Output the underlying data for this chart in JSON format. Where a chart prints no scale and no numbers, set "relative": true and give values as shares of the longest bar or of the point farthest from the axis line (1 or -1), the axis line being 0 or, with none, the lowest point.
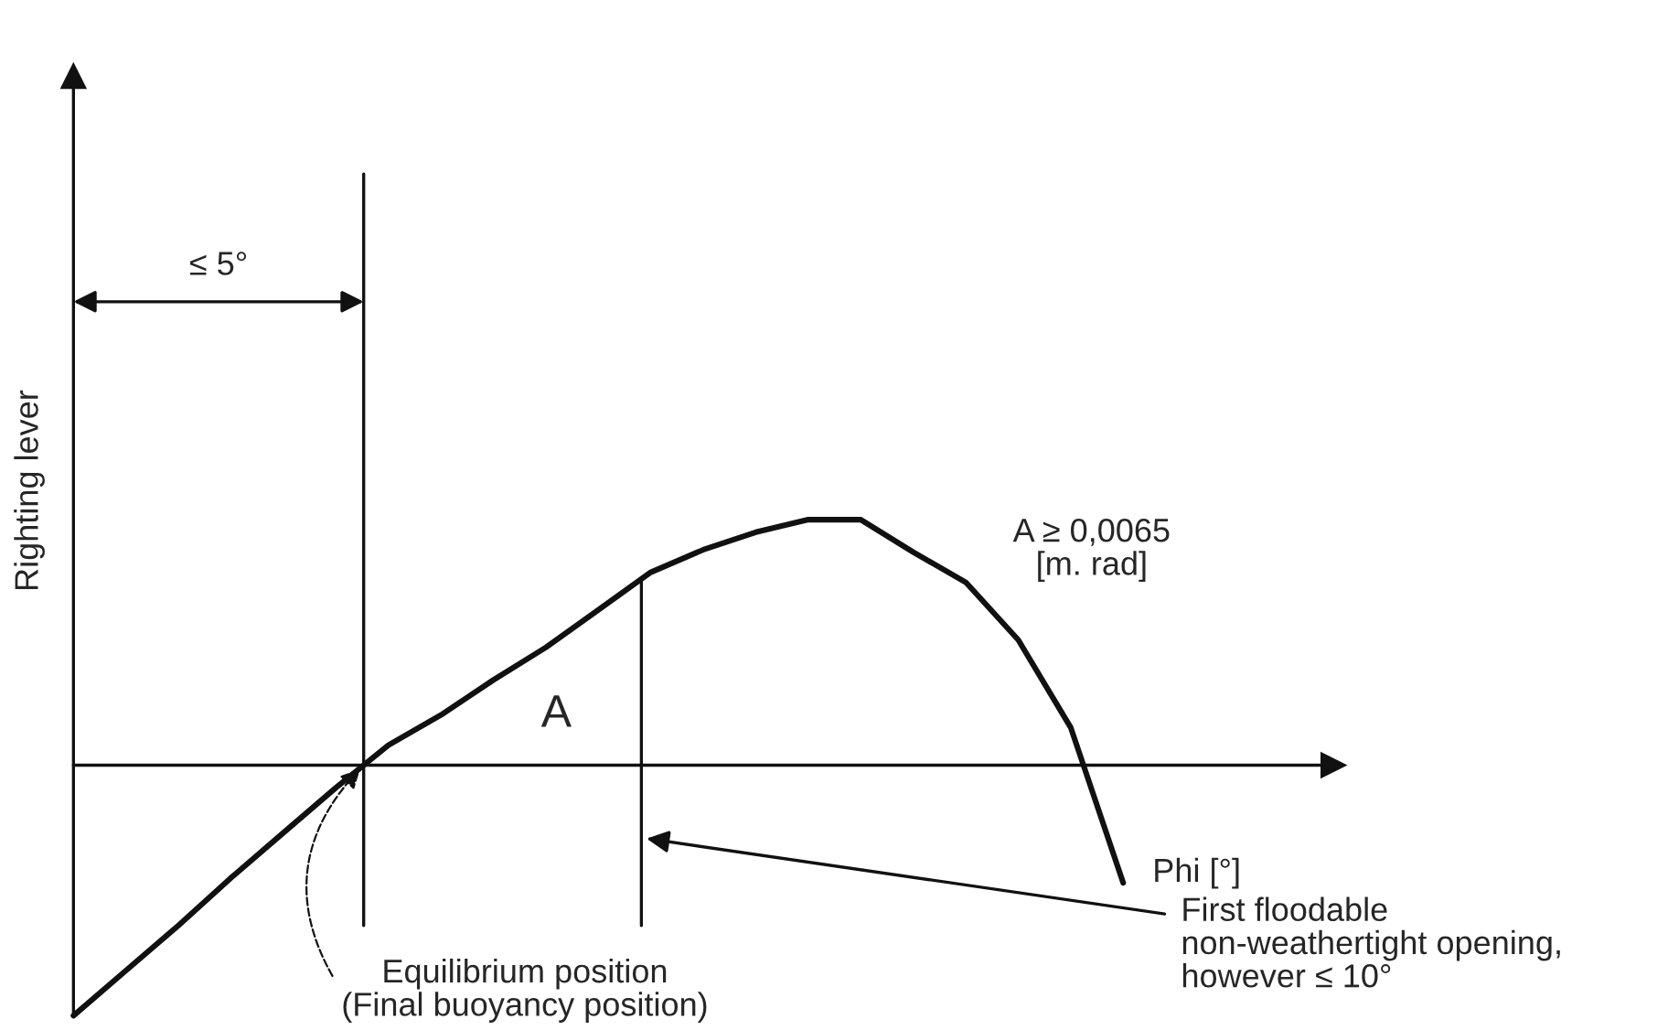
{
  "chart_data": {
    "type": "line",
    "relative": true,
    "xlabel": "Phi [°]",
    "ylabel": "Righting lever",
    "categories": [
      null,
      null,
      null,
      null,
      null,
      null,
      null,
      null,
      null,
      null,
      null,
      null,
      null,
      null,
      null,
      null,
      null,
      null,
      null,
      null,
      null
    ],
    "values": [
      -1.0,
      -0.82,
      -0.64,
      -0.45,
      -0.27,
      -0.09,
      0.08,
      0.2,
      0.34,
      0.47,
      0.62,
      0.77,
      0.86,
      0.93,
      0.98,
      0.98,
      0.85,
      0.73,
      0.5,
      0.15,
      -0.47
    ],
    "color": "#111111",
    "annotations": [
      "≤ 5°",
      "A",
      "A ≥ 0,0065\n[m. rad]",
      "Equilibrium position\n(Final buoyancy position)",
      "First floodable\nnon-weathertight opening,\nhowever ≤ 10°"
    ]
  }
}
